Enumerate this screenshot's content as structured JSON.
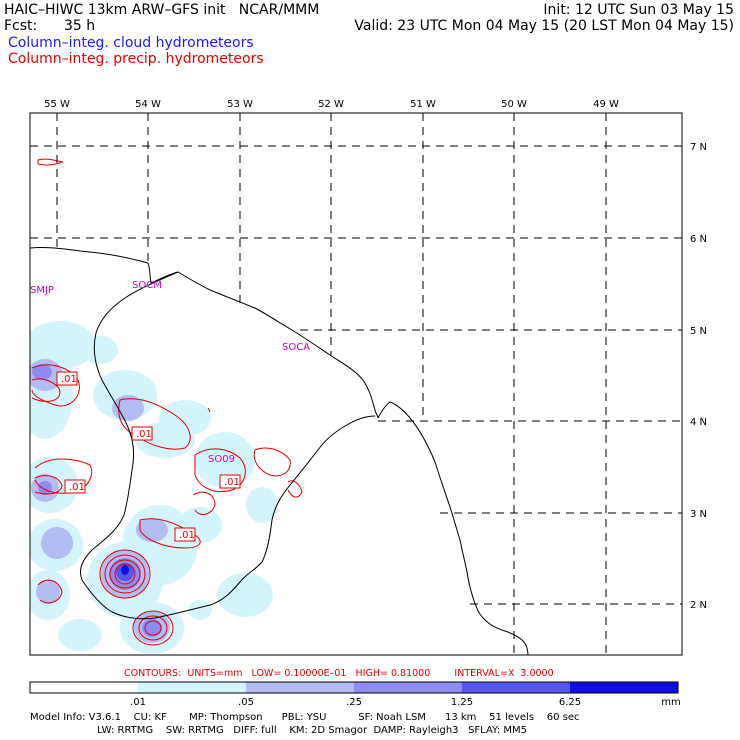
{
  "header": {
    "title": "HAIC–HIWC 13km ARW–GFS init   NCAR/MMM",
    "init": "Init: 12 UTC Sun 03 May 15",
    "fcst_label": "Fcst:",
    "fcst_value": "35 h",
    "valid": "Valid: 23 UTC Mon 04 May 15 (20 LST Mon 04 May 15)",
    "legend_cloud": "Column–integ. cloud hydrometeors",
    "legend_precip": "Column–integ. precip. hydrometeors"
  },
  "map": {
    "lon_labels": [
      "55 W",
      "54 W",
      "53 W",
      "52 W",
      "51 W",
      "50 W",
      "49 W"
    ],
    "lat_labels": [
      "7 N",
      "6 N",
      "5 N",
      "4 N",
      "3 N",
      "2 N"
    ],
    "stations": [
      "SMJP",
      "SOCM",
      "SOCA",
      "SO09"
    ],
    "contour_label": ".01",
    "colors": {
      "cloud_blue": "#1a1aff",
      "precip_red": "#e00000",
      "station_magenta": "#cc00cc"
    }
  },
  "contour_info": "CONTOURS:  UNITS=mm   LOW= 0.10000E–01   HIGH= 0.81000        INTERVAL=X  3.0000",
  "colorbar": {
    "ticks": [
      ".01",
      ".05",
      ".25",
      "1.25",
      "6.25"
    ],
    "unit": "mm",
    "colors": [
      "#ffffff",
      "#d4f4fb",
      "#b3bcf3",
      "#8c8cf2",
      "#5555f0",
      "#1010e6"
    ]
  },
  "footer": {
    "line1": "Model Info: V3.6.1    CU: KF       MP: Thompson      PBL: YSU          SF: Noah LSM      13 km    51 levels    60 sec",
    "line2": "LW: RRTMG    SW: RRTMG   DIFF: full    KM: 2D Smagor  DAMP: Rayleigh3   SFLAY: MM5"
  }
}
